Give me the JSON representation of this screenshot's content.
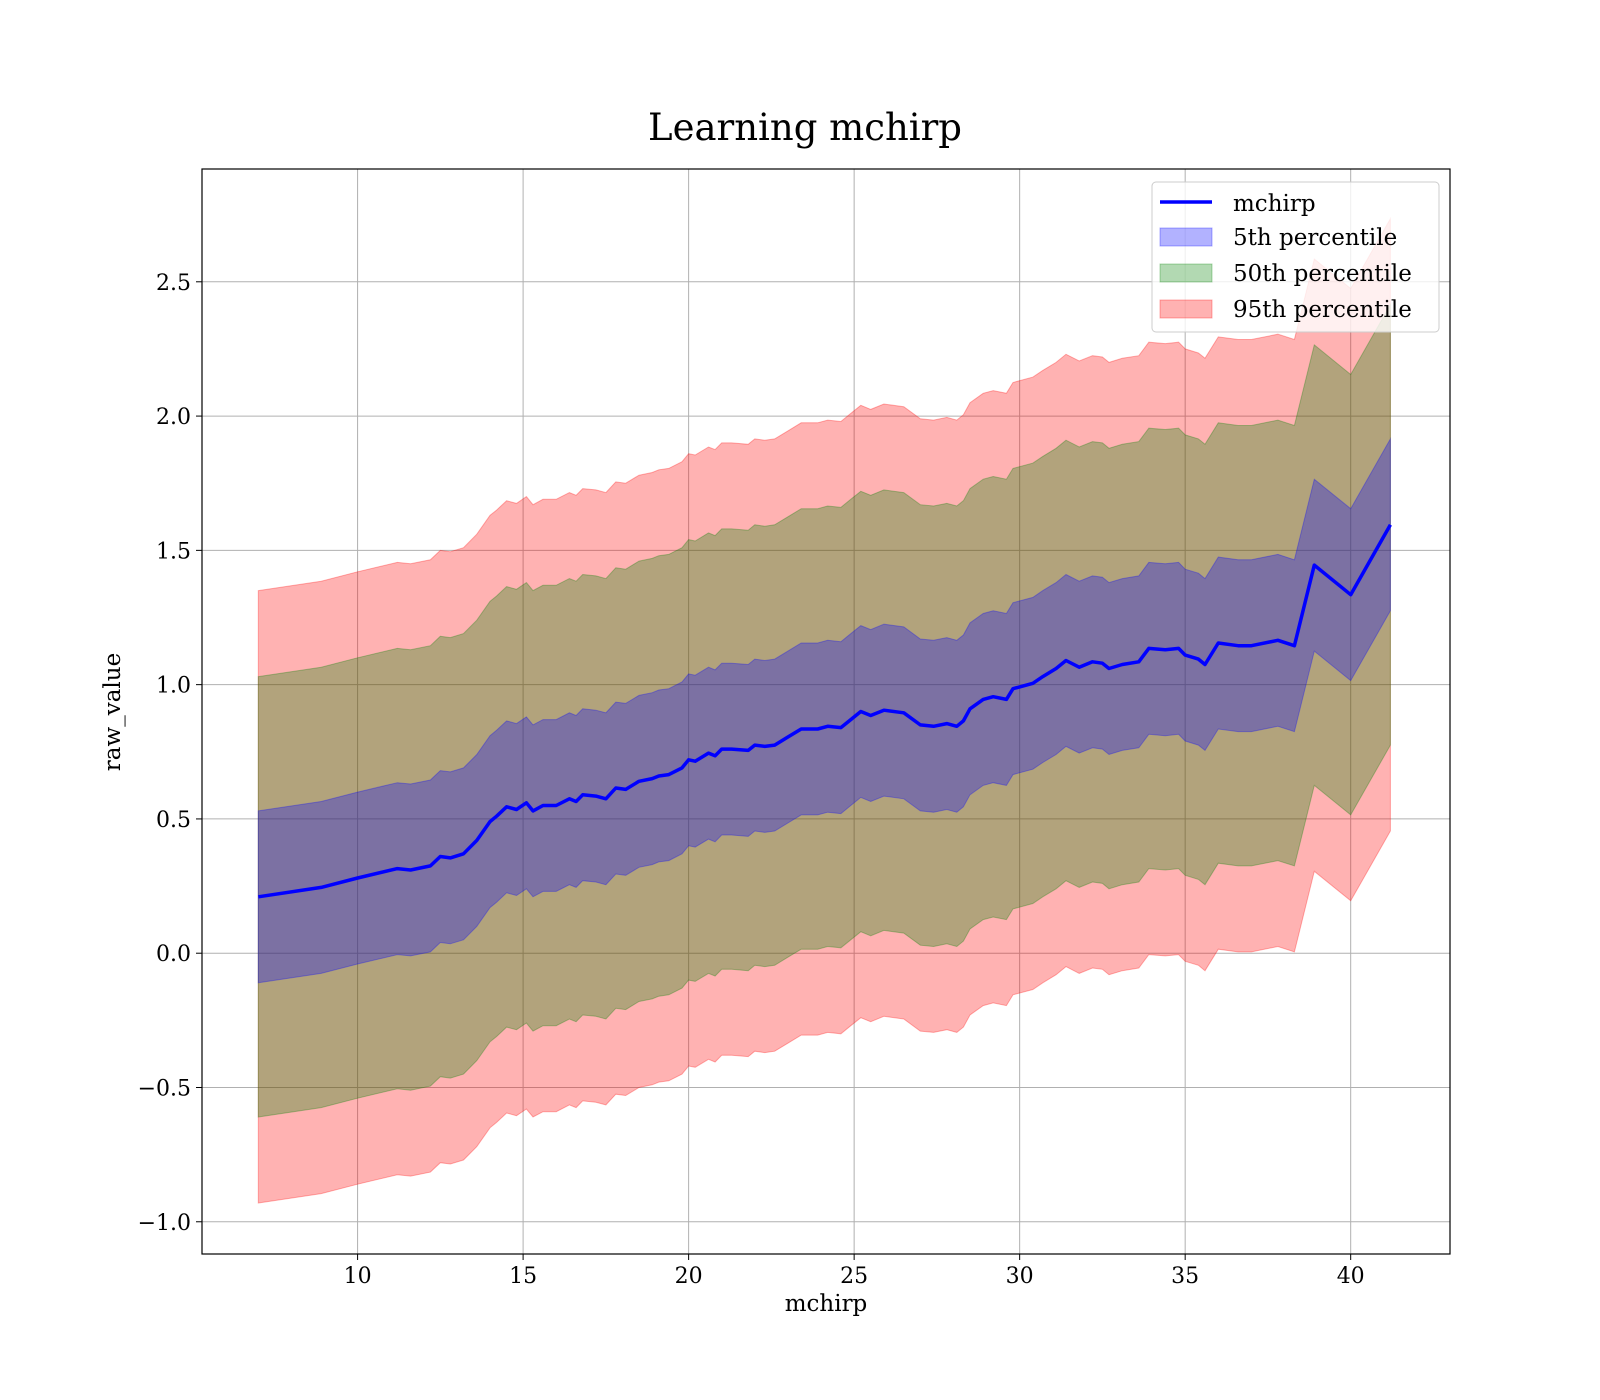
{
  "chart_data": {
    "type": "area",
    "title": "Learning mchirp",
    "xlabel": "mchirp",
    "ylabel": "raw_value",
    "xlim": [
      5.3,
      43.0
    ],
    "ylim": [
      -1.12,
      2.92
    ],
    "xticks": [
      10,
      15,
      20,
      25,
      30,
      35,
      40
    ],
    "yticks": [
      -1.0,
      -0.5,
      0.0,
      0.5,
      1.0,
      1.5,
      2.0,
      2.5
    ],
    "grid": true,
    "legend_position": "top-right",
    "x": [
      7.0,
      8.9,
      10.0,
      11.2,
      11.6,
      12.2,
      12.5,
      12.8,
      13.2,
      13.6,
      14.0,
      14.2,
      14.5,
      14.8,
      15.1,
      15.3,
      15.6,
      16.0,
      16.4,
      16.6,
      16.8,
      17.2,
      17.5,
      17.8,
      18.1,
      18.5,
      18.9,
      19.1,
      19.4,
      19.8,
      20.0,
      20.2,
      20.6,
      20.8,
      21.0,
      21.3,
      21.8,
      22.0,
      22.3,
      22.6,
      23.0,
      23.4,
      23.9,
      24.2,
      24.6,
      24.9,
      25.2,
      25.5,
      25.9,
      26.5,
      27.0,
      27.4,
      27.8,
      28.1,
      28.3,
      28.5,
      28.9,
      29.2,
      29.6,
      29.8,
      30.4,
      30.7,
      31.1,
      31.4,
      31.8,
      32.2,
      32.5,
      32.7,
      33.1,
      33.6,
      33.9,
      34.4,
      34.8,
      35.0,
      35.4,
      35.6,
      36.0,
      36.6,
      37.0,
      37.8,
      38.3,
      38.9,
      40.0,
      41.2
    ],
    "series": [
      {
        "name": "mchirp",
        "type": "line",
        "color": "#0000ff",
        "values": [
          0.21,
          0.245,
          0.28,
          0.315,
          0.31,
          0.325,
          0.36,
          0.355,
          0.37,
          0.42,
          0.49,
          0.51,
          0.545,
          0.535,
          0.56,
          0.53,
          0.55,
          0.55,
          0.575,
          0.565,
          0.59,
          0.585,
          0.575,
          0.615,
          0.61,
          0.64,
          0.65,
          0.66,
          0.665,
          0.69,
          0.72,
          0.715,
          0.745,
          0.735,
          0.76,
          0.76,
          0.755,
          0.775,
          0.77,
          0.775,
          0.805,
          0.835,
          0.835,
          0.845,
          0.84,
          0.87,
          0.9,
          0.885,
          0.905,
          0.895,
          0.85,
          0.845,
          0.855,
          0.845,
          0.865,
          0.91,
          0.945,
          0.955,
          0.945,
          0.985,
          1.005,
          1.03,
          1.06,
          1.09,
          1.065,
          1.085,
          1.08,
          1.06,
          1.075,
          1.085,
          1.135,
          1.13,
          1.135,
          1.11,
          1.095,
          1.075,
          1.155,
          1.145,
          1.145,
          1.165,
          1.145,
          1.445,
          1.335,
          1.595
        ]
      },
      {
        "name": "5th percentile",
        "type": "band",
        "color": "#0000ff",
        "opacity": 0.3,
        "half_width": 0.32
      },
      {
        "name": "50th percentile",
        "type": "band",
        "color": "#008000",
        "opacity": 0.3,
        "half_width": 0.82
      },
      {
        "name": "95th percentile",
        "type": "band",
        "color": "#ff0000",
        "opacity": 0.3,
        "half_width": 1.14
      }
    ]
  }
}
